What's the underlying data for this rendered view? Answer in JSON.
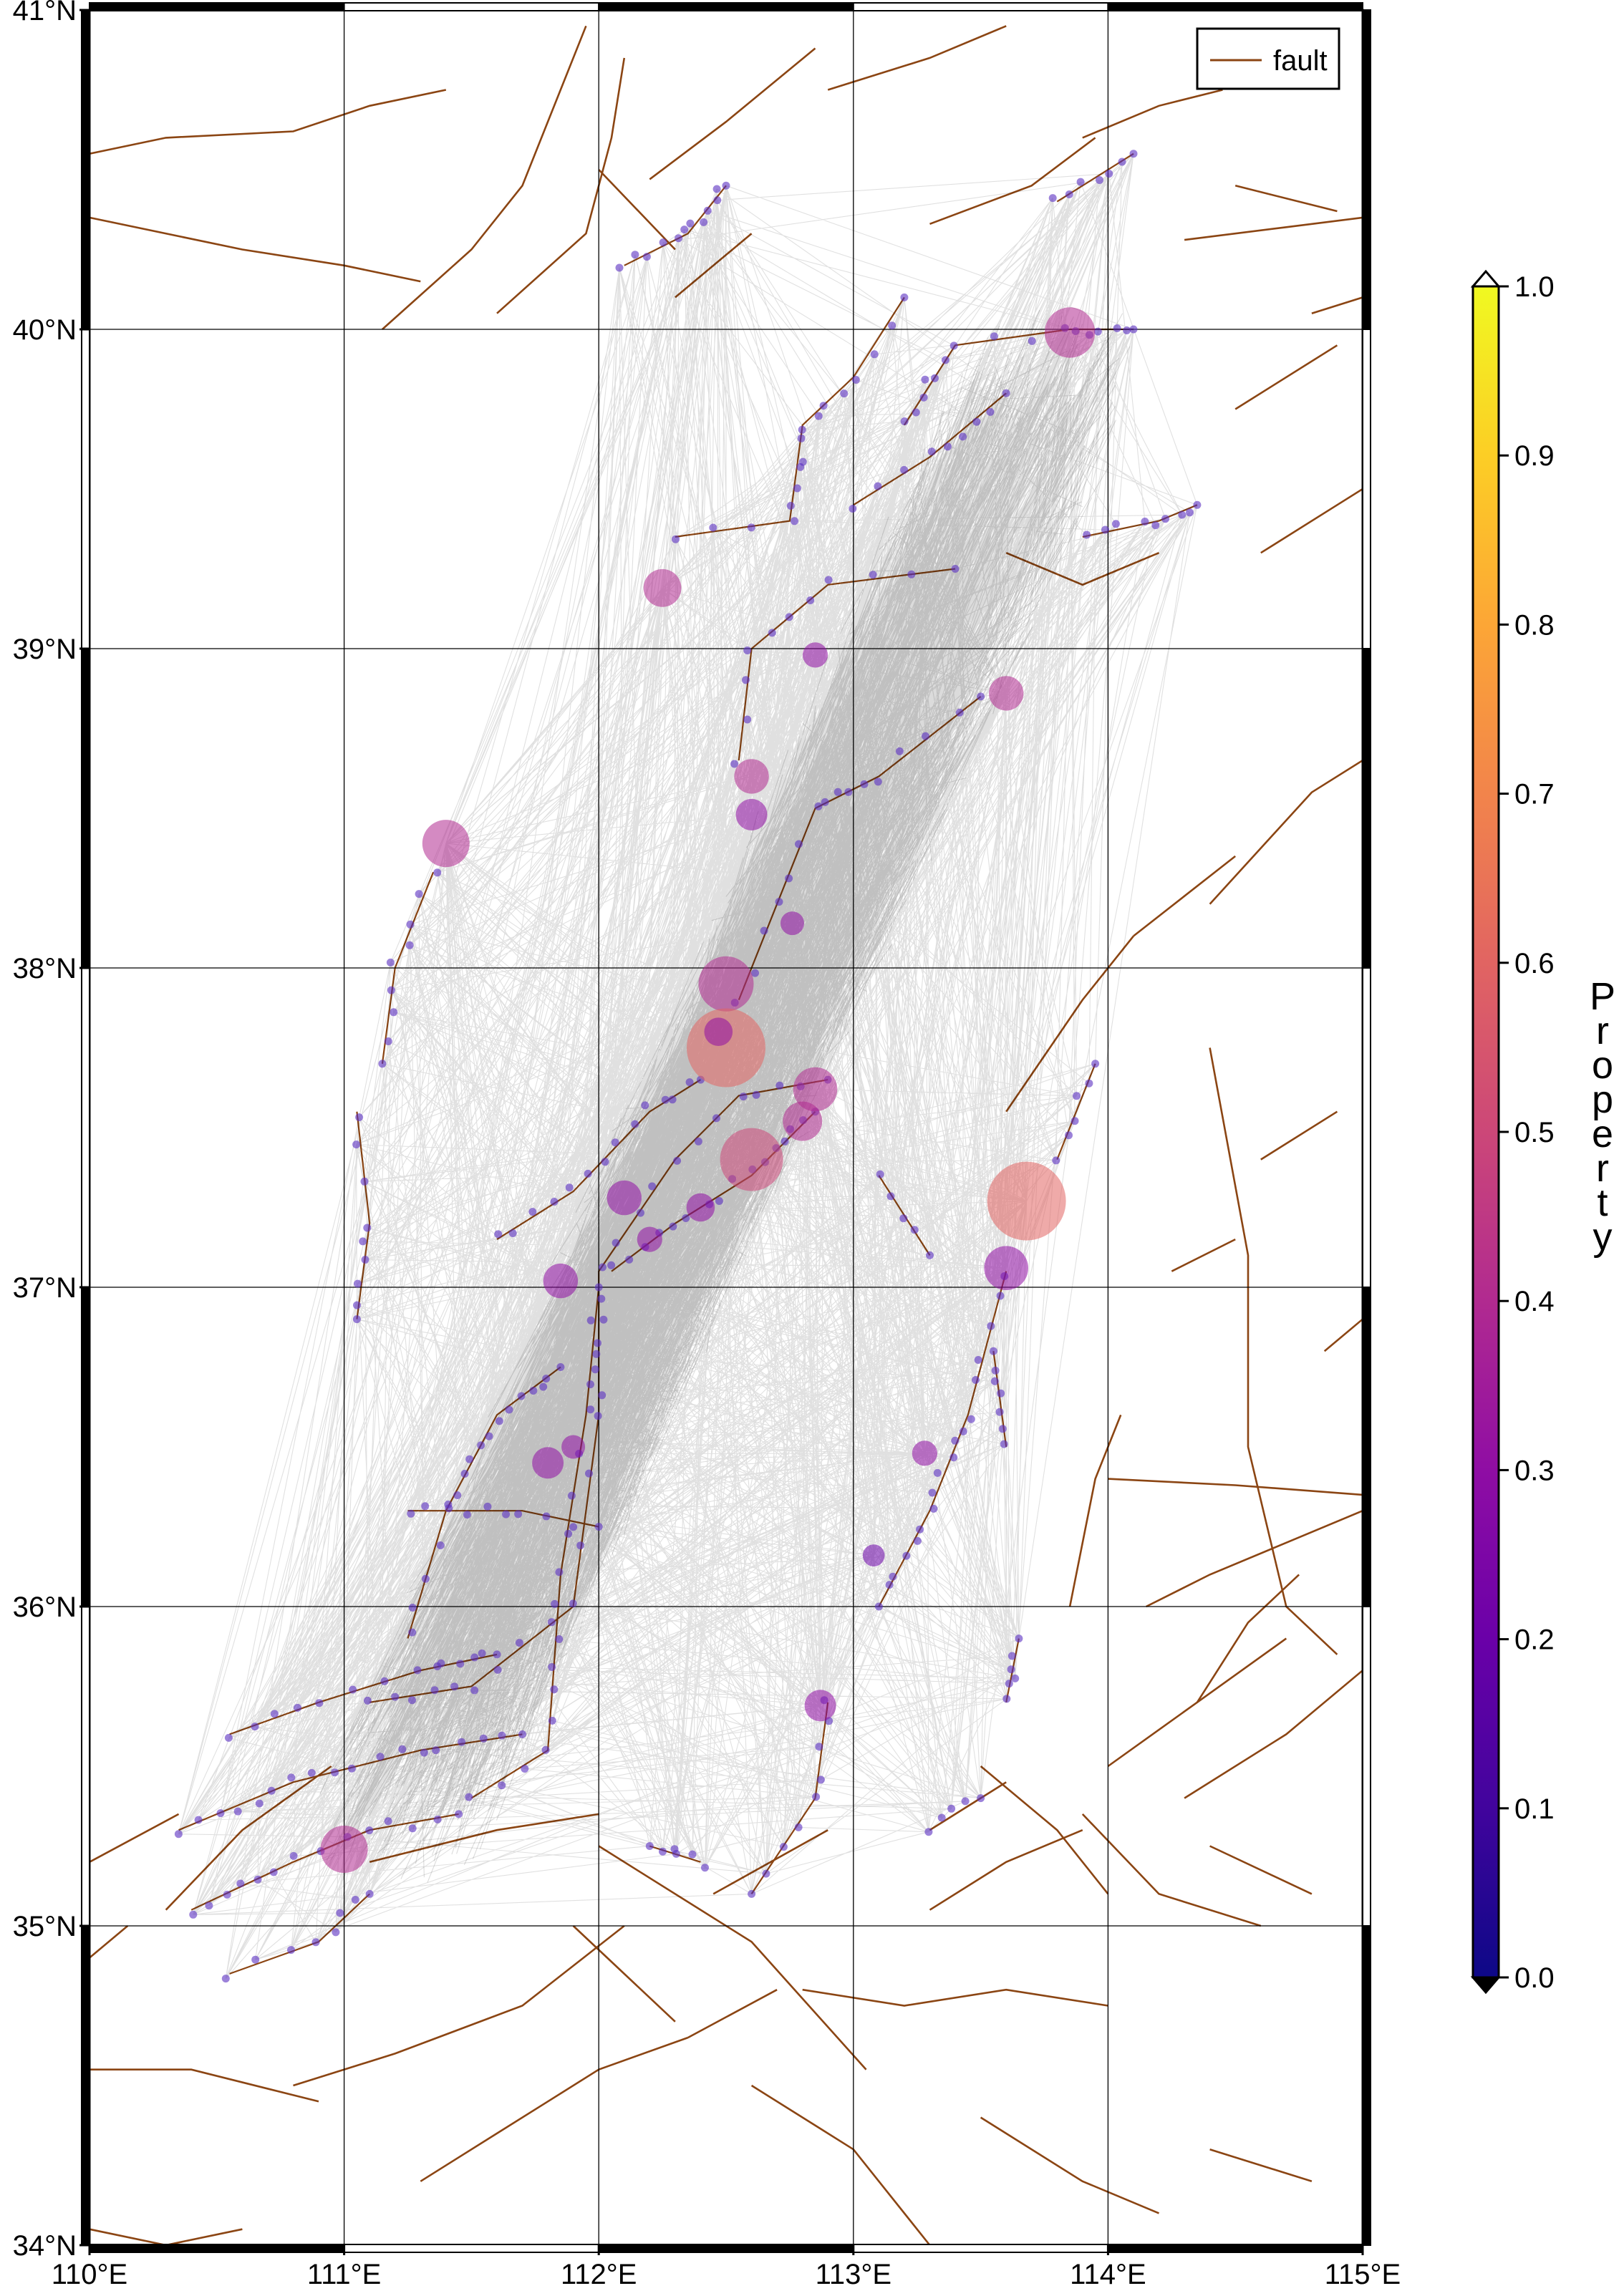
{
  "map": {
    "lon_range": [
      110,
      115
    ],
    "lat_range": [
      34,
      41
    ],
    "lon_ticks": [
      "110°E",
      "111°E",
      "112°E",
      "113°E",
      "114°E",
      "115°E"
    ],
    "lat_ticks": [
      "34°N",
      "35°N",
      "36°N",
      "37°N",
      "38°N",
      "39°N",
      "40°N",
      "41°N"
    ],
    "grid": true,
    "frame_style": "fancy black-white"
  },
  "legend": {
    "label": "fault",
    "placement": "top-right",
    "color": "#8b4513"
  },
  "colorbar": {
    "title": "Property",
    "colormap": "plasma",
    "range": [
      0.0,
      1.0
    ],
    "tick_labels": [
      "0.0",
      "0.1",
      "0.2",
      "0.3",
      "0.4",
      "0.5",
      "0.6",
      "0.7",
      "0.8",
      "0.9",
      "1.0"
    ]
  },
  "colors": {
    "fault": "#8b4513",
    "network_edge": "#000000",
    "grid": "#000000"
  },
  "nodes": [
    {
      "lon": 113.85,
      "lat": 39.99,
      "value": 0.38,
      "size": 3.2
    },
    {
      "lon": 113.6,
      "lat": 38.86,
      "value": 0.36,
      "size": 2.2
    },
    {
      "lon": 112.25,
      "lat": 39.19,
      "value": 0.36,
      "size": 2.4
    },
    {
      "lon": 111.4,
      "lat": 38.39,
      "value": 0.38,
      "size": 3.0
    },
    {
      "lon": 112.5,
      "lat": 37.95,
      "value": 0.38,
      "size": 3.5
    },
    {
      "lon": 112.5,
      "lat": 37.75,
      "value": 0.55,
      "size": 5.0
    },
    {
      "lon": 112.6,
      "lat": 37.4,
      "value": 0.47,
      "size": 4.0
    },
    {
      "lon": 112.85,
      "lat": 37.62,
      "value": 0.4,
      "size": 2.8
    },
    {
      "lon": 112.8,
      "lat": 37.52,
      "value": 0.36,
      "size": 2.5
    },
    {
      "lon": 113.68,
      "lat": 37.27,
      "value": 0.55,
      "size": 5.0
    },
    {
      "lon": 113.6,
      "lat": 37.06,
      "value": 0.3,
      "size": 2.8
    },
    {
      "lon": 112.1,
      "lat": 37.28,
      "value": 0.3,
      "size": 2.2
    },
    {
      "lon": 111.85,
      "lat": 37.02,
      "value": 0.3,
      "size": 2.2
    },
    {
      "lon": 112.6,
      "lat": 38.6,
      "value": 0.35,
      "size": 2.2
    },
    {
      "lon": 112.6,
      "lat": 38.48,
      "value": 0.33,
      "size": 2.0
    },
    {
      "lon": 112.85,
      "lat": 38.98,
      "value": 0.28,
      "size": 1.6
    },
    {
      "lon": 111.0,
      "lat": 35.24,
      "value": 0.36,
      "size": 3.0
    },
    {
      "lon": 112.87,
      "lat": 35.69,
      "value": 0.33,
      "size": 2.0
    },
    {
      "lon": 111.8,
      "lat": 36.45,
      "value": 0.3,
      "size": 2.0
    },
    {
      "lon": 112.4,
      "lat": 37.25,
      "value": 0.28,
      "size": 1.8
    },
    {
      "lon": 111.9,
      "lat": 36.5,
      "value": 0.25,
      "size": 1.5
    },
    {
      "lon": 113.28,
      "lat": 36.48,
      "value": 0.25,
      "size": 1.6
    },
    {
      "lon": 112.47,
      "lat": 37.8,
      "value": 0.26,
      "size": 1.8
    },
    {
      "lon": 113.08,
      "lat": 36.16,
      "value": 0.22,
      "size": 1.4
    },
    {
      "lon": 112.2,
      "lat": 37.15,
      "value": 0.25,
      "size": 1.6
    },
    {
      "lon": 112.76,
      "lat": 38.14,
      "value": 0.25,
      "size": 1.5
    }
  ]
}
